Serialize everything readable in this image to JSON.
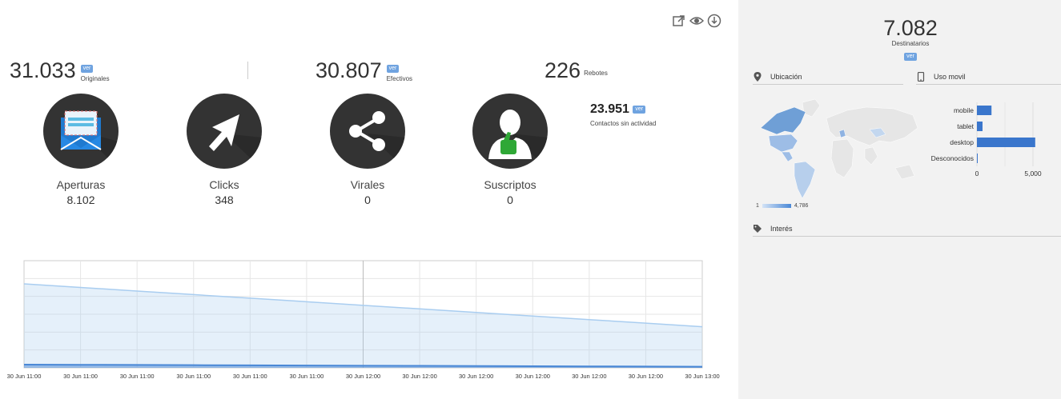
{
  "toolbar": {
    "icons": [
      "external-link-icon",
      "eye-icon",
      "download-icon"
    ]
  },
  "stats": {
    "originales": {
      "value": "31.033",
      "label": "Originales",
      "ver": "ver"
    },
    "efectivos": {
      "value": "30.807",
      "label": "Efectivos",
      "ver": "ver"
    },
    "rebotes": {
      "value": "226",
      "label": "Rebotes"
    }
  },
  "metrics": [
    {
      "label": "Aperturas",
      "value": "8.102",
      "icon": "envelope-icon"
    },
    {
      "label": "Clicks",
      "value": "348",
      "icon": "cursor-arrow-icon"
    },
    {
      "label": "Virales",
      "value": "0",
      "icon": "share-icon"
    },
    {
      "label": "Suscriptos",
      "value": "0",
      "icon": "user-thumbs-up-icon"
    }
  ],
  "inactive": {
    "value": "23.951",
    "ver": "ver",
    "label": "Contactos sin actividad"
  },
  "right": {
    "destinatarios": {
      "value": "7.082",
      "label": "Destinatarios",
      "ver": "ver"
    },
    "ubicacion": {
      "title": "Ubicación"
    },
    "uso_movil": {
      "title": "Uso movil"
    },
    "map_legend": {
      "min": "1",
      "max": "4,786"
    },
    "interes": {
      "title": "Interés"
    }
  },
  "device_chart": {
    "type": "bar",
    "categories": [
      "mobile",
      "tablet",
      "desktop",
      "Desconocidos"
    ],
    "values": [
      1300,
      500,
      5200,
      40
    ],
    "xlim": [
      0,
      6000
    ],
    "xticks": [
      0,
      5000
    ],
    "xtick_labels": [
      "0",
      "5,000"
    ],
    "color": "#3a76cc"
  },
  "chart_data": {
    "type": "area",
    "x": [
      "30 Jun 11:00",
      "30 Jun 11:00",
      "30 Jun 11:00",
      "30 Jun 11:00",
      "30 Jun 11:00",
      "30 Jun 11:00",
      "30 Jun 12:00",
      "30 Jun 12:00",
      "30 Jun 12:00",
      "30 Jun 12:00",
      "30 Jun 12:00",
      "30 Jun 12:00",
      "30 Jun 13:00"
    ],
    "series": [
      {
        "values": [
          4700,
          4500,
          4300,
          4100,
          3900,
          3700,
          3500,
          3300,
          3100,
          2900,
          2700,
          2500,
          2300
        ],
        "color": "#a9cdf0"
      },
      {
        "values": [
          180,
          170,
          160,
          150,
          140,
          130,
          120,
          110,
          100,
          90,
          80,
          70,
          60
        ],
        "color": "#4a88d6"
      }
    ],
    "ylim": [
      0,
      6000
    ],
    "grid": true
  },
  "colors": {
    "accent": "#6fa3e0",
    "panel": "#f2f2f2",
    "dark_circle": "#333333"
  }
}
